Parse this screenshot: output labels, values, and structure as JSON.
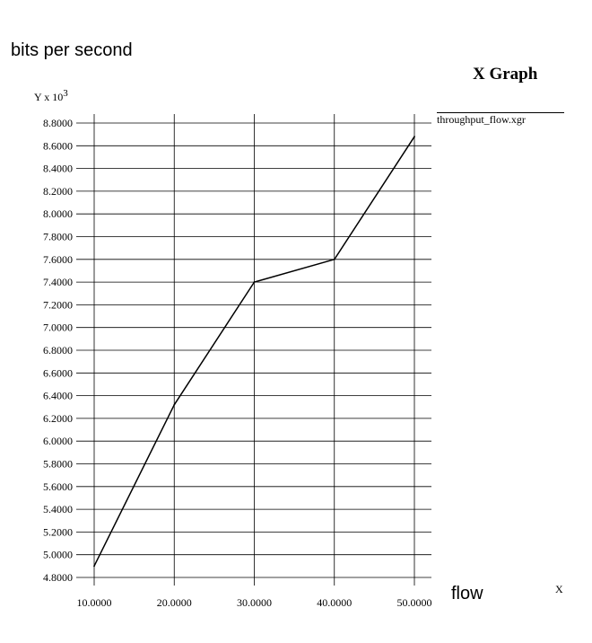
{
  "ylabel": "bits per second",
  "xlabel": "flow",
  "title": "X Graph",
  "y_unit": {
    "prefix": "Y x 10",
    "exponent": "3"
  },
  "x_unit": "X",
  "legend": {
    "label": "throughput_flow.xgr",
    "color": "#000000"
  },
  "colors": {
    "line": "#000000",
    "grid": "#000000"
  },
  "chart_data": {
    "type": "line",
    "title": "X Graph",
    "xlabel": "flow",
    "ylabel": "bits per second",
    "x": [
      10,
      20,
      30,
      40,
      50
    ],
    "series": [
      {
        "name": "throughput_flow.xgr",
        "values": [
          4.9,
          6.32,
          7.4,
          7.6,
          8.68
        ]
      }
    ],
    "xlim": [
      10,
      50
    ],
    "ylim": [
      4.8,
      8.8
    ],
    "x_ticks": [
      10,
      20,
      30,
      40,
      50
    ],
    "x_tick_labels": [
      "10.0000",
      "20.0000",
      "30.0000",
      "40.0000",
      "50.0000"
    ],
    "y_ticks": [
      4.8,
      5.0,
      5.2,
      5.4,
      5.6,
      5.8,
      6.0,
      6.2,
      6.4,
      6.6,
      6.8,
      7.0,
      7.2,
      7.4,
      7.6,
      7.8,
      8.0,
      8.2,
      8.4,
      8.6,
      8.8
    ],
    "y_tick_labels": [
      "4.8000",
      "5.0000",
      "5.2000",
      "5.4000",
      "5.6000",
      "5.8000",
      "6.0000",
      "6.2000",
      "6.4000",
      "6.6000",
      "6.8000",
      "7.0000",
      "7.2000",
      "7.4000",
      "7.6000",
      "7.8000",
      "8.0000",
      "8.2000",
      "8.4000",
      "8.6000",
      "8.8000"
    ],
    "y_scale_note": "Y x 10^3",
    "grid": true,
    "legend_position": "top-right"
  }
}
